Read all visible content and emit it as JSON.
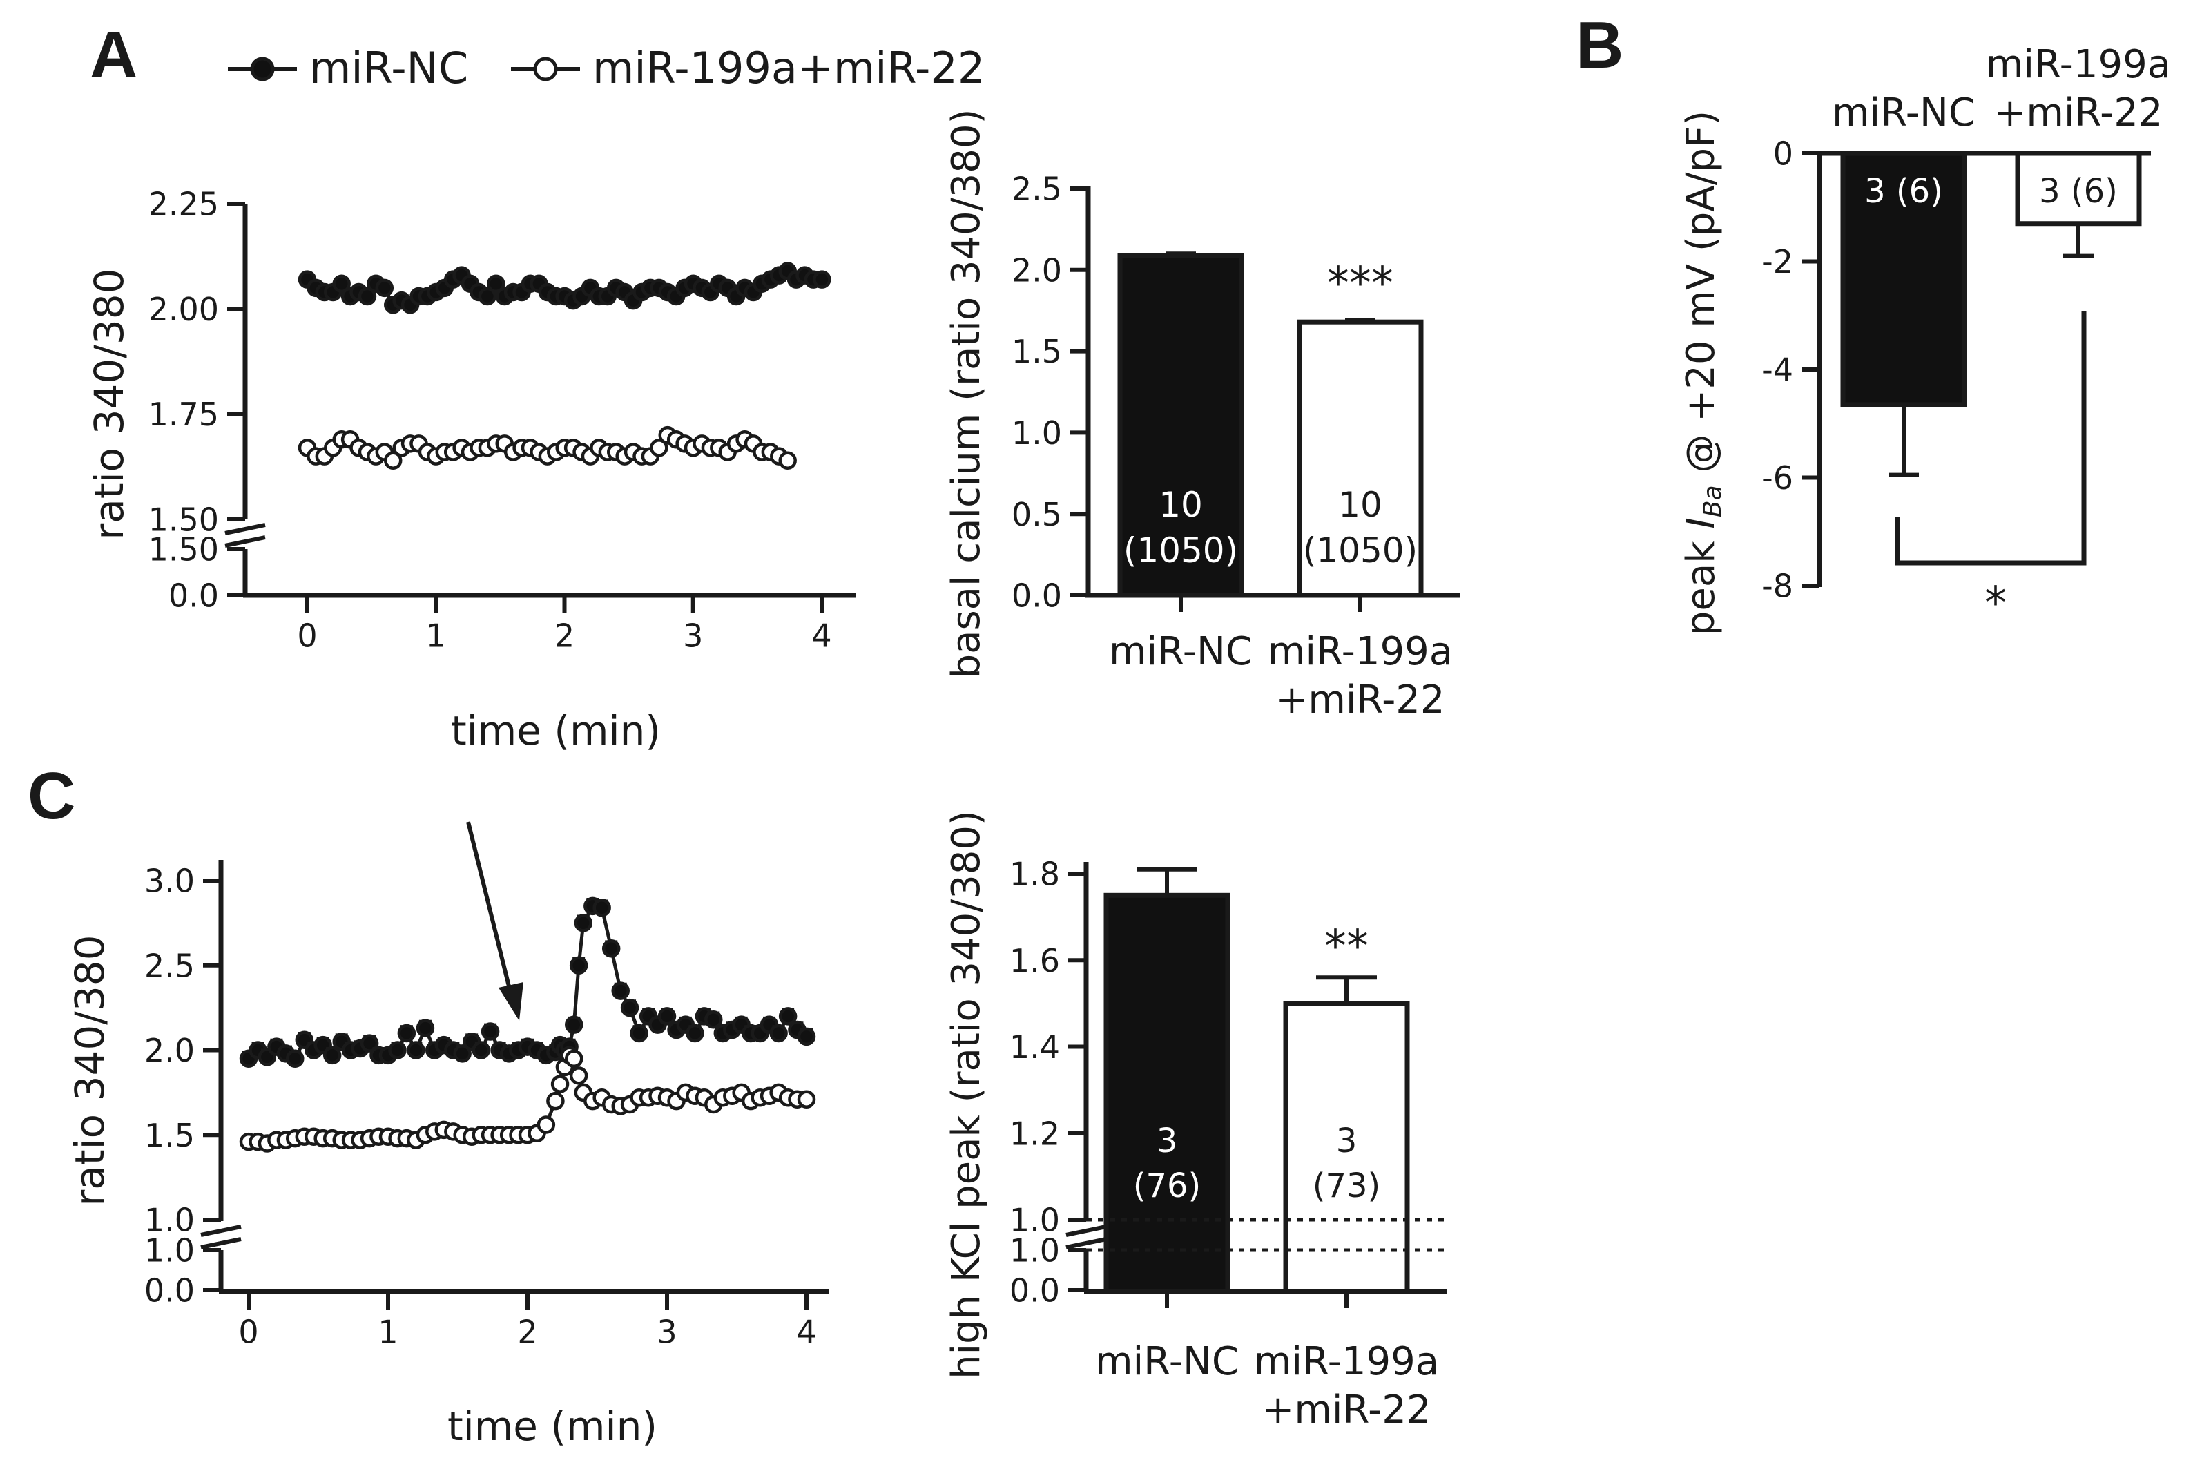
{
  "figure": {
    "panel_a": "A",
    "panel_b": "B",
    "panel_c": "C",
    "legend": {
      "nc_label": "miR-NC",
      "mir_label": "miR-199a+miR-22"
    },
    "colors": {
      "ink": "#1a1a1a",
      "nc_fill": "#111111",
      "mir_fill": "#ffffff"
    }
  },
  "chart_data": [
    {
      "id": "A_trace",
      "type": "line",
      "xlabel": "time (min)",
      "ylabel": "ratio 340/380",
      "xticks": [
        "0",
        "1",
        "2",
        "3",
        "4"
      ],
      "xlim": [
        -0.5,
        4.2
      ],
      "upper_yticks": [
        1.5,
        1.75,
        2.0,
        2.25
      ],
      "upper_ytick_labels": [
        "1.50",
        "1.75",
        "2.00",
        "2.25"
      ],
      "upper_ylim": [
        1.5,
        2.25
      ],
      "lower_yticks": [
        0.0,
        1.5
      ],
      "lower_ytick_labels": [
        "0.0",
        "1.50"
      ],
      "lower_ylim": [
        0.0,
        1.5
      ],
      "axis_break": true,
      "series": [
        {
          "name": "miR-NC",
          "marker": "filled-circle",
          "x0": 0,
          "dx": 0.0667,
          "values": [
            2.07,
            2.05,
            2.04,
            2.04,
            2.06,
            2.03,
            2.04,
            2.03,
            2.06,
            2.05,
            2.01,
            2.02,
            2.01,
            2.03,
            2.03,
            2.04,
            2.05,
            2.07,
            2.08,
            2.06,
            2.04,
            2.03,
            2.06,
            2.03,
            2.04,
            2.04,
            2.06,
            2.06,
            2.04,
            2.03,
            2.03,
            2.02,
            2.03,
            2.05,
            2.03,
            2.03,
            2.05,
            2.04,
            2.02,
            2.04,
            2.05,
            2.05,
            2.04,
            2.03,
            2.05,
            2.06,
            2.05,
            2.04,
            2.06,
            2.05,
            2.03,
            2.05,
            2.04,
            2.06,
            2.07,
            2.08,
            2.09,
            2.07,
            2.08,
            2.07,
            2.07
          ],
          "error": 0.012
        },
        {
          "name": "miR-199a+miR-22",
          "marker": "open-circle",
          "x0": 0,
          "dx": 0.0667,
          "values": [
            1.67,
            1.65,
            1.65,
            1.67,
            1.69,
            1.69,
            1.67,
            1.66,
            1.65,
            1.66,
            1.64,
            1.67,
            1.68,
            1.68,
            1.66,
            1.65,
            1.66,
            1.66,
            1.67,
            1.66,
            1.67,
            1.67,
            1.68,
            1.68,
            1.66,
            1.67,
            1.67,
            1.66,
            1.65,
            1.66,
            1.67,
            1.67,
            1.66,
            1.65,
            1.67,
            1.66,
            1.66,
            1.65,
            1.66,
            1.65,
            1.65,
            1.67,
            1.7,
            1.69,
            1.68,
            1.67,
            1.68,
            1.67,
            1.67,
            1.66,
            1.68,
            1.69,
            1.68,
            1.66,
            1.66,
            1.65,
            1.64
          ],
          "error": 0.01
        }
      ]
    },
    {
      "id": "A_bar",
      "type": "bar",
      "ylabel": "basal calcium (ratio 340/380)",
      "categories": [
        "miR-NC",
        "miR-199a\n+miR-22"
      ],
      "category_lines": [
        [
          "miR-NC"
        ],
        [
          "miR-199a",
          "+miR-22"
        ]
      ],
      "values": [
        2.09,
        1.68
      ],
      "errors": [
        0.01,
        0.01
      ],
      "ylim": [
        0.0,
        2.5
      ],
      "yticks": [
        0.0,
        0.5,
        1.0,
        1.5,
        2.0,
        2.5
      ],
      "ytick_labels": [
        "0.0",
        "0.5",
        "1.0",
        "1.5",
        "2.0",
        "2.5"
      ],
      "bar_labels": [
        [
          "10",
          "(1050)"
        ],
        [
          "10",
          "(1050)"
        ]
      ],
      "significance": "***"
    },
    {
      "id": "B_bar",
      "type": "bar",
      "ylabel_parts": [
        "peak ",
        "I",
        "Ba",
        " @ +20 mV (pA/pF)"
      ],
      "categories": [
        "miR-NC",
        "miR-199a\n+miR-22"
      ],
      "category_lines": [
        [
          "miR-NC"
        ],
        [
          "miR-199a",
          "+miR-22"
        ]
      ],
      "values": [
        -4.65,
        -1.3
      ],
      "errors": [
        1.3,
        0.6
      ],
      "ylim": [
        -8,
        0
      ],
      "yticks": [
        0,
        -2,
        -4,
        -6,
        -8
      ],
      "ytick_labels": [
        "0",
        "-2",
        "-4",
        "-6",
        "-8"
      ],
      "bar_labels": [
        "3 (6)",
        "3 (6)"
      ],
      "significance": "*"
    },
    {
      "id": "C_trace",
      "type": "line",
      "xlabel": "time (min)",
      "ylabel": "ratio 340/380",
      "xticks": [
        "0",
        "1",
        "2",
        "3",
        "4"
      ],
      "xlim": [
        -0.2,
        4.1
      ],
      "upper_yticks": [
        1.0,
        1.5,
        2.0,
        2.5,
        3.0
      ],
      "upper_ytick_labels": [
        "1.0",
        "1.5",
        "2.0",
        "2.5",
        "3.0"
      ],
      "upper_ylim": [
        1.0,
        3.0
      ],
      "lower_yticks": [
        0.0,
        1.0
      ],
      "lower_ytick_labels": [
        "0.0",
        "1.0"
      ],
      "lower_ylim": [
        0.0,
        1.0
      ],
      "axis_break": true,
      "annotation": "arrow",
      "series": [
        {
          "name": "miR-NC",
          "marker": "filled-circle",
          "x": [
            0,
            0.067,
            0.133,
            0.2,
            0.267,
            0.333,
            0.4,
            0.467,
            0.533,
            0.6,
            0.667,
            0.733,
            0.8,
            0.867,
            0.933,
            1.0,
            1.067,
            1.133,
            1.2,
            1.267,
            1.333,
            1.4,
            1.467,
            1.533,
            1.6,
            1.667,
            1.733,
            1.8,
            1.867,
            1.933,
            2.0,
            2.067,
            2.133,
            2.2,
            2.233,
            2.267,
            2.3,
            2.333,
            2.367,
            2.4,
            2.467,
            2.533,
            2.6,
            2.667,
            2.733,
            2.8,
            2.867,
            2.933,
            3.0,
            3.067,
            3.133,
            3.2,
            3.267,
            3.333,
            3.4,
            3.467,
            3.533,
            3.6,
            3.667,
            3.733,
            3.8,
            3.867,
            3.933,
            4.0
          ],
          "values": [
            1.95,
            2.0,
            1.96,
            2.02,
            1.98,
            1.95,
            2.06,
            2.0,
            2.03,
            1.97,
            2.05,
            2.0,
            2.01,
            2.04,
            1.97,
            1.97,
            2.0,
            2.1,
            2.0,
            2.13,
            2.0,
            2.03,
            2.0,
            1.98,
            2.05,
            2.0,
            2.11,
            2.0,
            1.98,
            2.0,
            2.02,
            2.0,
            1.97,
            1.99,
            2.03,
            2.0,
            2.02,
            2.15,
            2.5,
            2.75,
            2.85,
            2.84,
            2.6,
            2.35,
            2.25,
            2.1,
            2.2,
            2.15,
            2.2,
            2.12,
            2.15,
            2.1,
            2.2,
            2.18,
            2.1,
            2.12,
            2.15,
            2.1,
            2.1,
            2.15,
            2.1,
            2.2,
            2.12,
            2.08
          ],
          "error": 0.04
        },
        {
          "name": "miR-199a+miR-22",
          "marker": "open-circle",
          "x": [
            0,
            0.067,
            0.133,
            0.2,
            0.267,
            0.333,
            0.4,
            0.467,
            0.533,
            0.6,
            0.667,
            0.733,
            0.8,
            0.867,
            0.933,
            1.0,
            1.067,
            1.133,
            1.2,
            1.267,
            1.333,
            1.4,
            1.467,
            1.533,
            1.6,
            1.667,
            1.733,
            1.8,
            1.867,
            1.933,
            2.0,
            2.067,
            2.133,
            2.2,
            2.233,
            2.267,
            2.3,
            2.333,
            2.367,
            2.4,
            2.467,
            2.533,
            2.6,
            2.667,
            2.733,
            2.8,
            2.867,
            2.933,
            3.0,
            3.067,
            3.133,
            3.2,
            3.267,
            3.333,
            3.4,
            3.467,
            3.533,
            3.6,
            3.667,
            3.733,
            3.8,
            3.867,
            3.933,
            4.0
          ],
          "values": [
            1.46,
            1.46,
            1.45,
            1.47,
            1.47,
            1.48,
            1.49,
            1.49,
            1.48,
            1.48,
            1.47,
            1.47,
            1.47,
            1.48,
            1.49,
            1.49,
            1.48,
            1.48,
            1.47,
            1.5,
            1.52,
            1.53,
            1.52,
            1.5,
            1.49,
            1.5,
            1.5,
            1.5,
            1.5,
            1.5,
            1.5,
            1.51,
            1.56,
            1.7,
            1.8,
            1.9,
            1.97,
            1.95,
            1.85,
            1.75,
            1.7,
            1.72,
            1.68,
            1.67,
            1.68,
            1.72,
            1.72,
            1.73,
            1.72,
            1.7,
            1.75,
            1.73,
            1.72,
            1.68,
            1.72,
            1.73,
            1.75,
            1.7,
            1.72,
            1.73,
            1.75,
            1.72,
            1.71,
            1.71
          ],
          "error": 0.03
        }
      ]
    },
    {
      "id": "C_bar",
      "type": "bar",
      "ylabel": "high KCl peak (ratio 340/380)",
      "categories": [
        "miR-NC",
        "miR-199a\n+miR-22"
      ],
      "category_lines": [
        [
          "miR-NC"
        ],
        [
          "miR-199a",
          "+miR-22"
        ]
      ],
      "values": [
        1.75,
        1.5
      ],
      "errors": [
        0.06,
        0.06
      ],
      "upper_ylim": [
        1.0,
        1.8
      ],
      "upper_yticks": [
        1.0,
        1.2,
        1.4,
        1.6,
        1.8
      ],
      "upper_ytick_labels": [
        "1.0",
        "1.2",
        "1.4",
        "1.6",
        "1.8"
      ],
      "lower_ylim": [
        0.0,
        1.0
      ],
      "lower_yticks": [
        0.0,
        1.0
      ],
      "lower_ytick_labels": [
        "0.0",
        "1.0"
      ],
      "axis_break": true,
      "bar_labels": [
        [
          "3",
          "(76)"
        ],
        [
          "3",
          "(73)"
        ]
      ],
      "significance": "**"
    }
  ]
}
